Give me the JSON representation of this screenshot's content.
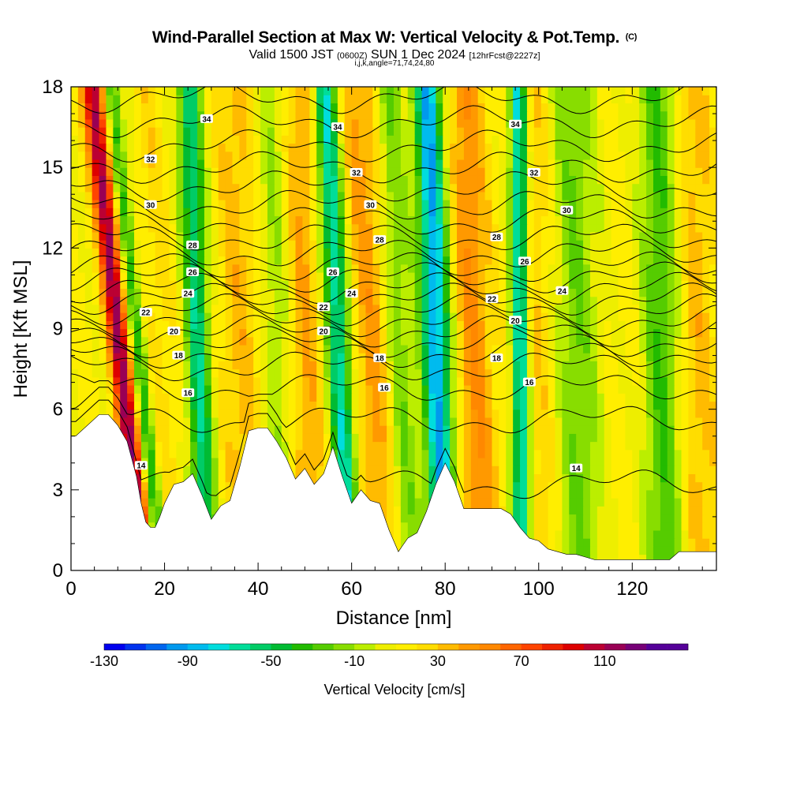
{
  "title": {
    "main": "Wind-Parallel Section at Max W: Vertical Velocity & Pot.Temp.",
    "copyright": "(C)",
    "valid_prefix": "Valid 1500 JST",
    "valid_utc": "(0600Z)",
    "valid_date": "SUN 1 Dec 2024",
    "forecast": "[12hrFcst@2227z]",
    "indices": "i,j,k,angle=71,74,24,80"
  },
  "chart_data": {
    "type": "heatmap",
    "xlabel": "Distance [nm]",
    "ylabel": "Height [Kft MSL]",
    "xlim": [
      0,
      138
    ],
    "ylim": [
      0,
      18
    ],
    "x_ticks": [
      0,
      20,
      40,
      60,
      80,
      100,
      120
    ],
    "y_ticks": [
      0,
      3,
      6,
      9,
      12,
      15,
      18
    ],
    "colorbar": {
      "label": "Vertical Velocity [cm/s]",
      "min": -130,
      "max": 150,
      "step": 10,
      "tick_labels": [
        "-130",
        "-90",
        "-50",
        "-10",
        "30",
        "70",
        "110"
      ],
      "colors": [
        "#0000ee",
        "#0033ee",
        "#0066ee",
        "#0099ee",
        "#00bbee",
        "#00dddd",
        "#00dd99",
        "#00cc66",
        "#00bb33",
        "#22bb00",
        "#55cc00",
        "#88dd00",
        "#bbee00",
        "#eeee00",
        "#ffee00",
        "#ffdd00",
        "#ffbb00",
        "#ff9900",
        "#ff8800",
        "#ff6600",
        "#ff4400",
        "#ee2200",
        "#dd0000",
        "#bb0033",
        "#990055",
        "#770077",
        "#550099",
        "#550099"
      ]
    },
    "velocity_streaks": [
      {
        "x": 10,
        "w": 2.2,
        "value": 115,
        "tilt": 1.2
      },
      {
        "x": 14,
        "w": 1.6,
        "value": -40,
        "tilt": 1.2
      },
      {
        "x": 19,
        "w": 3,
        "value": 25,
        "tilt": 0.6
      },
      {
        "x": 27,
        "w": 2.5,
        "value": -60,
        "tilt": 0.4
      },
      {
        "x": 36,
        "w": 4,
        "value": 35,
        "tilt": 0.3
      },
      {
        "x": 44,
        "w": 3,
        "value": -10,
        "tilt": 0.3
      },
      {
        "x": 50,
        "w": 3.5,
        "value": 40,
        "tilt": 0.3
      },
      {
        "x": 57,
        "w": 2.5,
        "value": -70,
        "tilt": 0.6
      },
      {
        "x": 64,
        "w": 4,
        "value": 45,
        "tilt": 0.6
      },
      {
        "x": 70,
        "w": 3,
        "value": -20,
        "tilt": 0.5
      },
      {
        "x": 78,
        "w": 3,
        "value": -90,
        "tilt": 0.4
      },
      {
        "x": 86,
        "w": 4,
        "value": 50,
        "tilt": 0.4
      },
      {
        "x": 96,
        "w": 1.8,
        "value": -80,
        "tilt": 0.1
      },
      {
        "x": 100,
        "w": 4,
        "value": 30,
        "tilt": 0.2
      },
      {
        "x": 108,
        "w": 5,
        "value": -20,
        "tilt": 0.2
      },
      {
        "x": 118,
        "w": 5,
        "value": 15,
        "tilt": 0.2
      },
      {
        "x": 126,
        "w": 4,
        "value": -30,
        "tilt": 0.2
      },
      {
        "x": 134,
        "w": 4,
        "value": 35,
        "tilt": 0.2
      }
    ],
    "terrain": {
      "x": [
        0,
        1,
        6,
        8,
        10,
        12,
        14,
        15,
        16,
        17,
        18,
        19,
        20,
        22,
        24,
        26,
        28,
        30,
        32,
        34,
        36,
        38,
        40,
        42,
        44,
        46,
        48,
        50,
        52,
        54,
        56,
        58,
        60,
        62,
        64,
        66,
        68,
        70,
        72,
        74,
        76,
        78,
        80,
        82,
        84,
        86,
        88,
        90,
        92,
        94,
        96,
        98,
        100,
        102,
        104,
        106,
        108,
        110,
        112,
        114,
        116,
        118,
        120,
        122,
        124,
        126,
        128,
        130,
        132,
        134,
        136,
        138
      ],
      "height": [
        5,
        5,
        5.8,
        5.8,
        5.4,
        4.8,
        3.5,
        2.5,
        1.8,
        1.6,
        1.6,
        2,
        2.5,
        3.2,
        3.3,
        3.6,
        2.8,
        1.9,
        2.4,
        2.6,
        3.8,
        5.2,
        5.3,
        5.3,
        4.8,
        4.2,
        3.4,
        3.8,
        3.2,
        3.6,
        4.6,
        3.5,
        2.5,
        3.0,
        2.6,
        2.5,
        1.5,
        0.7,
        1.2,
        1.4,
        2.2,
        3.2,
        4.0,
        3.3,
        2.3,
        2.3,
        2.3,
        2.3,
        2.3,
        2.1,
        1.6,
        1.2,
        1.1,
        0.8,
        0.7,
        0.6,
        0.6,
        0.5,
        0.4,
        0.4,
        0.4,
        0.4,
        0.4,
        0.4,
        0.4,
        0.4,
        0.4,
        0.7,
        0.7,
        0.7,
        0.7,
        0.7
      ]
    },
    "isentrope_levels": [
      14,
      15,
      16,
      17,
      18,
      19,
      20,
      21,
      22,
      23,
      24,
      25,
      26,
      27,
      28,
      29,
      30,
      31,
      32,
      33,
      34,
      35
    ],
    "isentrope_base_heights": [
      3.2,
      5.6,
      6.8,
      7.6,
      8.1,
      8.5,
      8.9,
      9.3,
      9.7,
      10.1,
      10.5,
      10.9,
      11.3,
      11.8,
      12.4,
      13.0,
      13.6,
      14.3,
      15.0,
      15.8,
      16.7,
      17.6
    ],
    "contour_labels": [
      {
        "text": "34",
        "x": 29,
        "y": 16.8
      },
      {
        "text": "34",
        "x": 57,
        "y": 16.5
      },
      {
        "text": "34",
        "x": 95,
        "y": 16.6
      },
      {
        "text": "32",
        "x": 17,
        "y": 15.3
      },
      {
        "text": "32",
        "x": 61,
        "y": 14.8
      },
      {
        "text": "32",
        "x": 99,
        "y": 14.8
      },
      {
        "text": "30",
        "x": 17,
        "y": 13.6
      },
      {
        "text": "30",
        "x": 64,
        "y": 13.6
      },
      {
        "text": "30",
        "x": 106,
        "y": 13.4
      },
      {
        "text": "28",
        "x": 26,
        "y": 12.1
      },
      {
        "text": "28",
        "x": 66,
        "y": 12.3
      },
      {
        "text": "28",
        "x": 91,
        "y": 12.4
      },
      {
        "text": "26",
        "x": 26,
        "y": 11.1
      },
      {
        "text": "26",
        "x": 56,
        "y": 11.1
      },
      {
        "text": "26",
        "x": 97,
        "y": 11.5
      },
      {
        "text": "24",
        "x": 25,
        "y": 10.3
      },
      {
        "text": "24",
        "x": 60,
        "y": 10.3
      },
      {
        "text": "24",
        "x": 105,
        "y": 10.4
      },
      {
        "text": "22",
        "x": 16,
        "y": 9.6
      },
      {
        "text": "22",
        "x": 54,
        "y": 9.8
      },
      {
        "text": "22",
        "x": 90,
        "y": 10.1
      },
      {
        "text": "20",
        "x": 22,
        "y": 8.9
      },
      {
        "text": "20",
        "x": 54,
        "y": 8.9
      },
      {
        "text": "20",
        "x": 95,
        "y": 9.3
      },
      {
        "text": "18",
        "x": 23,
        "y": 8.0
      },
      {
        "text": "18",
        "x": 66,
        "y": 7.9
      },
      {
        "text": "18",
        "x": 91,
        "y": 7.9
      },
      {
        "text": "16",
        "x": 25,
        "y": 6.6
      },
      {
        "text": "16",
        "x": 67,
        "y": 6.8
      },
      {
        "text": "16",
        "x": 98,
        "y": 7.0
      },
      {
        "text": "14",
        "x": 15,
        "y": 3.9
      },
      {
        "text": "14",
        "x": 108,
        "y": 3.8
      }
    ]
  }
}
